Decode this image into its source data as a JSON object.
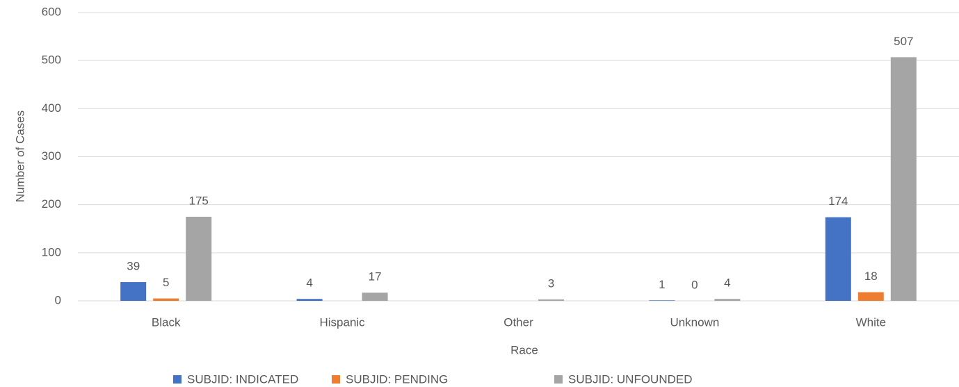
{
  "chart_data": {
    "type": "bar",
    "x_label": "Race",
    "y_label": "Number of Cases",
    "categories": [
      "Black",
      "Hispanic",
      "Other",
      "Unknown",
      "White"
    ],
    "series": [
      {
        "name": "SUBJID: INDICATED",
        "color": "#4472c4",
        "values": [
          39,
          4,
          null,
          1,
          174
        ]
      },
      {
        "name": "SUBJID: PENDING",
        "color": "#ed7d31",
        "values": [
          5,
          null,
          null,
          0,
          18
        ]
      },
      {
        "name": "SUBJID: UNFOUNDED",
        "color": "#a5a5a5",
        "values": [
          175,
          17,
          3,
          4,
          507
        ]
      }
    ],
    "ylim": [
      0,
      600
    ],
    "yticks": [
      0,
      100,
      200,
      300,
      400,
      500,
      600
    ],
    "grid": true,
    "legend": "bottom"
  }
}
